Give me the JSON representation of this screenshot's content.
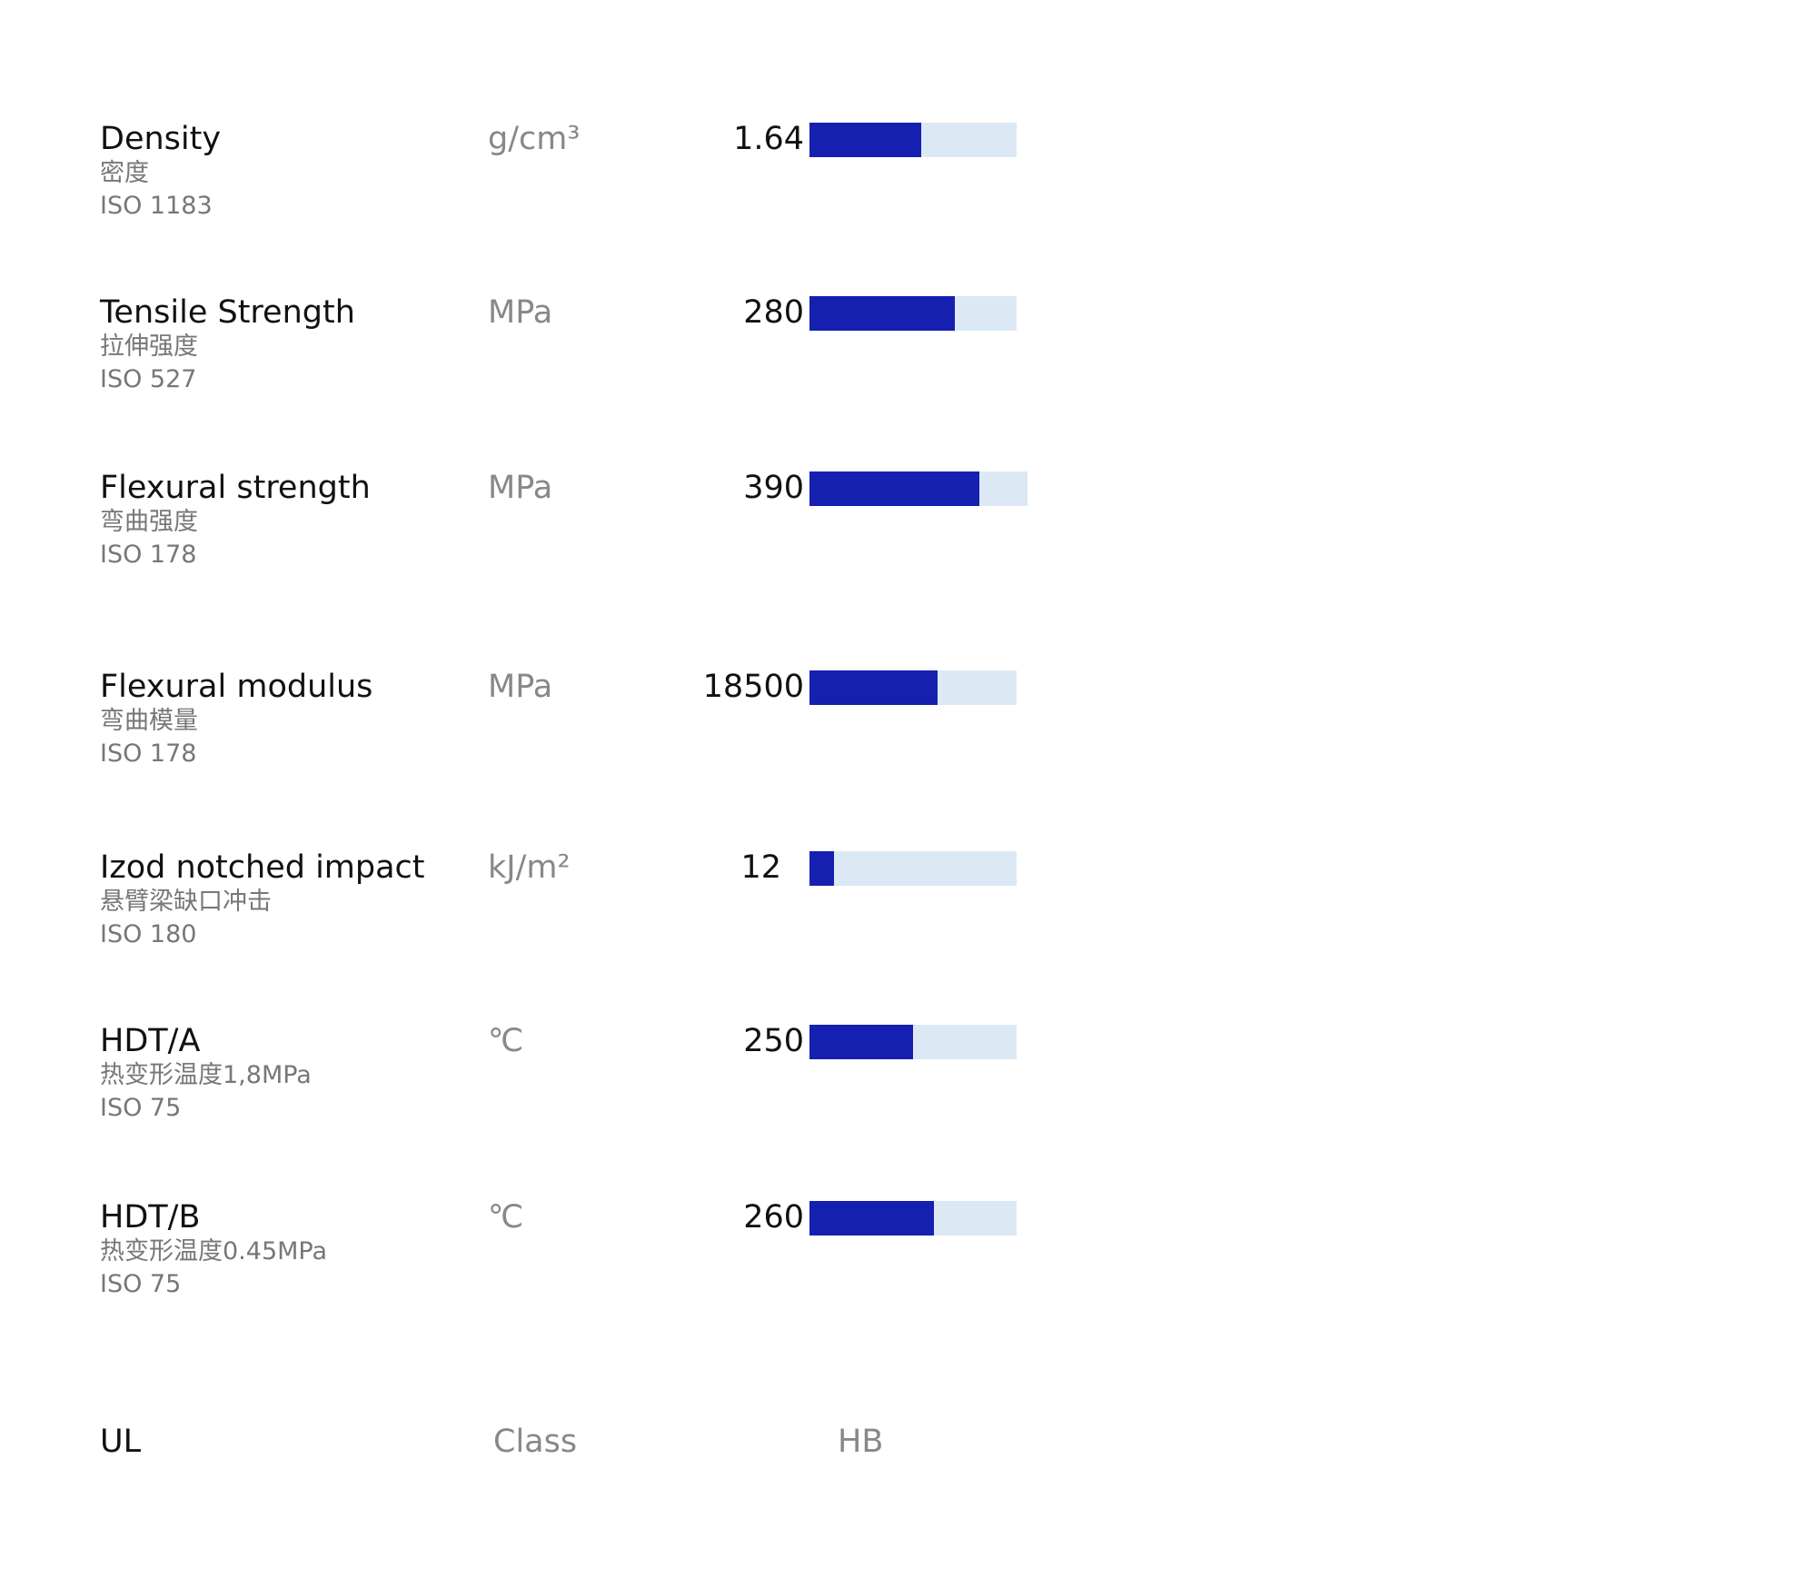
{
  "properties": [
    {
      "name": "Density",
      "name_zh": "密度",
      "standard": "ISO 1183",
      "unit": "g/cm³",
      "value": 1.64
    },
    {
      "name": "Tensile Strength",
      "name_zh": "拉伸强度",
      "standard": "ISO 527",
      "unit": "MPa",
      "value": 280
    },
    {
      "name": "Flexural strength",
      "name_zh": "弯曲强度",
      "standard": "ISO 178",
      "unit": "MPa",
      "value": 390
    },
    {
      "name": "Flexural modulus",
      "name_zh": "弯曲模量",
      "standard": "ISO 178",
      "unit": "MPa",
      "value": 18500
    },
    {
      "name": "Izod notched impact",
      "name_zh": "悬臂梁缺口冲击",
      "standard": "ISO 180",
      "unit": "kJ/m²",
      "value": 12
    },
    {
      "name": "HDT/A",
      "name_zh": "热变形温度1,8MPa",
      "standard": "ISO 75",
      "unit": "℃",
      "value": 250
    },
    {
      "name": "HDT/B",
      "name_zh": "热变形温度0.45MPa",
      "standard": "ISO 75",
      "unit": "℃",
      "value": 260
    }
  ],
  "ul": {
    "label": "UL",
    "unit": "Class",
    "value": "HB"
  }
}
